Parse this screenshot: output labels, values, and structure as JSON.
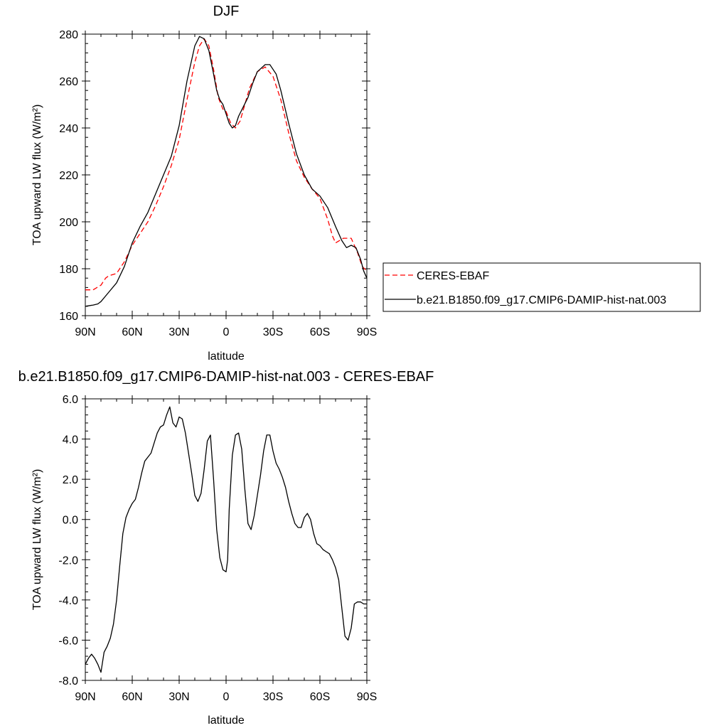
{
  "chart_data": [
    {
      "type": "line",
      "title": "DJF",
      "xlabel": "latitude",
      "ylabel": "TOA upward LW flux (W/m²)",
      "xlim": [
        -90,
        90
      ],
      "ylim": [
        160,
        280
      ],
      "x_ticks": [
        -90,
        -60,
        -30,
        0,
        30,
        60,
        90
      ],
      "x_tick_labels": [
        "90N",
        "60N",
        "30N",
        "0",
        "30S",
        "60S",
        "90S"
      ],
      "y_ticks": [
        160,
        180,
        200,
        220,
        240,
        260,
        280
      ],
      "y_tick_labels": [
        "160",
        "180",
        "200",
        "220",
        "240",
        "260",
        "280"
      ],
      "legend_position": "right",
      "series": [
        {
          "name": "CERES-EBAF",
          "style": "dashed",
          "color": "#ff0000",
          "x": [
            -90,
            -85,
            -80,
            -77,
            -75,
            -70,
            -65,
            -60,
            -55,
            -50,
            -45,
            -40,
            -35,
            -30,
            -25,
            -20,
            -17,
            -14,
            -11,
            -8,
            -5,
            -2,
            0,
            3,
            6,
            9,
            12,
            15,
            20,
            25,
            30,
            35,
            40,
            45,
            50,
            55,
            60,
            65,
            68,
            70,
            75,
            80,
            84,
            87,
            90
          ],
          "y": [
            171,
            171,
            173,
            176,
            177,
            178,
            183,
            190,
            195,
            200,
            207,
            215,
            224,
            235,
            252,
            268,
            275,
            278,
            275,
            265,
            253,
            248,
            247,
            242,
            240,
            243,
            250,
            257,
            264,
            266,
            262,
            252,
            238,
            226,
            219,
            214,
            210,
            201,
            194,
            191,
            193,
            193,
            187,
            181,
            179
          ]
        },
        {
          "name": "b.e21.B1850.f09_g17.CMIP6-DAMIP-hist-nat.003",
          "style": "solid",
          "color": "#000000",
          "x": [
            -90,
            -85,
            -82,
            -80,
            -75,
            -70,
            -65,
            -60,
            -55,
            -50,
            -45,
            -40,
            -35,
            -30,
            -25,
            -20,
            -17,
            -14,
            -11,
            -8,
            -6,
            -4,
            -2,
            0,
            2,
            4,
            6,
            8,
            11,
            14,
            17,
            20,
            25,
            28,
            32,
            35,
            40,
            45,
            50,
            55,
            60,
            65,
            70,
            74,
            77,
            80,
            83,
            86,
            88,
            90
          ],
          "y": [
            164,
            164.5,
            165,
            166,
            170,
            174,
            181,
            191,
            198,
            204,
            212,
            220,
            228,
            241,
            260,
            275,
            279,
            278,
            273,
            263,
            256,
            252,
            250,
            246,
            242,
            240,
            241,
            245,
            249,
            253,
            259,
            264,
            267,
            267,
            263,
            256,
            242,
            229,
            220,
            214,
            211,
            206,
            198,
            192,
            189,
            190,
            189,
            184,
            179,
            176
          ]
        }
      ]
    },
    {
      "type": "line",
      "title": "b.e21.B1850.f09_g17.CMIP6-DAMIP-hist-nat.003 - CERES-EBAF",
      "xlabel": "latitude",
      "ylabel": "TOA upward LW flux (W/m²)",
      "xlim": [
        -90,
        90
      ],
      "ylim": [
        -8,
        6
      ],
      "x_ticks": [
        -90,
        -60,
        -30,
        0,
        30,
        60,
        90
      ],
      "x_tick_labels": [
        "90N",
        "60N",
        "30N",
        "0",
        "30S",
        "60S",
        "90S"
      ],
      "y_ticks": [
        -8,
        -6,
        -4,
        -2,
        0,
        2,
        4,
        6
      ],
      "y_tick_labels": [
        "-8.0",
        "-6.0",
        "-4.0",
        "-2.0",
        "0.0",
        "2.0",
        "4.0",
        "6.0"
      ],
      "series": [
        {
          "style": "solid",
          "color": "#000000",
          "x": [
            -90,
            -88,
            -86,
            -84,
            -82,
            -80,
            -78,
            -76,
            -74,
            -72,
            -70,
            -68,
            -66,
            -64,
            -62,
            -60,
            -58,
            -56,
            -54,
            -52,
            -50,
            -48,
            -46,
            -44,
            -42,
            -40,
            -38,
            -36,
            -34,
            -32,
            -30,
            -28,
            -26,
            -24,
            -22,
            -20,
            -18,
            -16,
            -14,
            -12,
            -10,
            -8,
            -6,
            -4,
            -2,
            0,
            1,
            2,
            4,
            6,
            8,
            10,
            12,
            14,
            16,
            18,
            20,
            22,
            24,
            26,
            28,
            30,
            32,
            34,
            36,
            38,
            40,
            42,
            44,
            46,
            48,
            50,
            52,
            54,
            56,
            58,
            60,
            62,
            64,
            66,
            68,
            70,
            72,
            74,
            76,
            78,
            80,
            82,
            84,
            86,
            88,
            90
          ],
          "y": [
            -7.2,
            -6.9,
            -6.7,
            -6.9,
            -7.2,
            -7.6,
            -6.6,
            -6.3,
            -5.9,
            -5.2,
            -4.0,
            -2.3,
            -0.7,
            0.1,
            0.5,
            0.8,
            1.0,
            1.6,
            2.3,
            2.9,
            3.1,
            3.3,
            3.8,
            4.3,
            4.6,
            4.7,
            5.2,
            5.6,
            4.8,
            4.6,
            5.1,
            5.0,
            4.3,
            3.3,
            2.3,
            1.2,
            0.9,
            1.3,
            2.5,
            3.9,
            4.2,
            2.0,
            -0.5,
            -1.9,
            -2.5,
            -2.6,
            -2.0,
            0.5,
            3.2,
            4.2,
            4.3,
            3.5,
            1.5,
            -0.2,
            -0.5,
            0.2,
            1.2,
            2.2,
            3.4,
            4.2,
            4.2,
            3.4,
            2.8,
            2.5,
            2.1,
            1.6,
            0.9,
            0.3,
            -0.2,
            -0.4,
            -0.4,
            0.1,
            0.3,
            0.0,
            -0.7,
            -1.2,
            -1.3,
            -1.5,
            -1.6,
            -1.7,
            -2.0,
            -2.4,
            -3.0,
            -4.4,
            -5.8,
            -6.0,
            -5.4,
            -4.2,
            -4.1,
            -4.1,
            -4.2,
            -4.2
          ]
        }
      ]
    }
  ]
}
